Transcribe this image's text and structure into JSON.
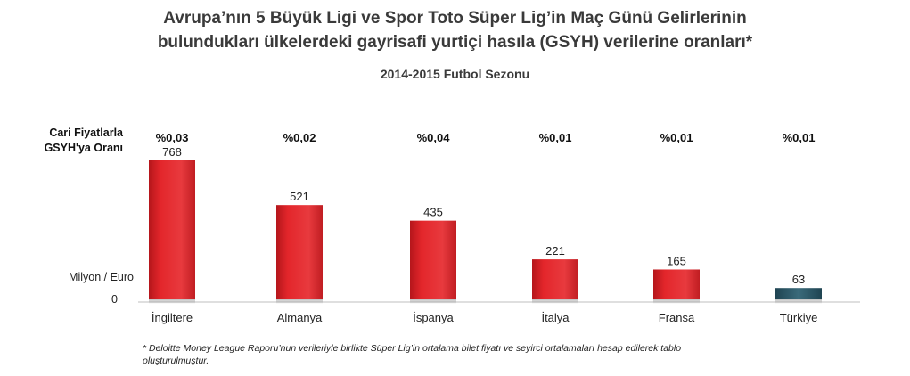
{
  "title_line1": "Avrupa’nın 5 Büyük Ligi ve Spor Toto Süper Lig’in Maç Günü Gelirlerinin",
  "title_line2": "bulundukları ülkelerdeki gayrisafi yurtiçi hasıla (GSYH) verilerine oranları*",
  "subtitle": "2014-2015 Futbol Sezonu",
  "ratio_label_line1": "Cari Fiyatlarla",
  "ratio_label_line2": "GSYH'ya Oranı",
  "footnote_line1": "* Deloitte Money League Raporu’nun verileriyle birlikte Süper Lig’in ortalama bilet fiyatı ve seyirci ortalamaları hesap edilerek tablo",
  "footnote_line2": "oluşturulmuştur.",
  "chart_data": {
    "type": "bar",
    "title": "Avrupa’nın 5 Büyük Ligi ve Spor Toto Süper Lig’in Maç Günü Gelirlerinin bulundukları ülkelerdeki gayrisafi yurtiçi hasıla (GSYH) verilerine oranları*",
    "subtitle": "2014-2015 Futbol Sezonu",
    "ylabel": "Milyon / Euro",
    "y_zero_label": "0",
    "ylim": [
      0,
      800
    ],
    "categories": [
      "İngiltere",
      "Almanya",
      "İspanya",
      "İtalya",
      "Fransa",
      "Türkiye"
    ],
    "values": [
      768,
      521,
      435,
      221,
      165,
      63
    ],
    "value_labels": [
      "768",
      "521",
      "435",
      "221",
      "165",
      "63"
    ],
    "ratios": [
      "%0,03",
      "%0,02",
      "%0,04",
      "%0,01",
      "%0,01",
      "%0,01"
    ],
    "colors": [
      "#e0262b",
      "#e0262b",
      "#e0262b",
      "#e0262b",
      "#e0262b",
      "#2f5b6b"
    ],
    "grid": false,
    "legend": "none"
  }
}
